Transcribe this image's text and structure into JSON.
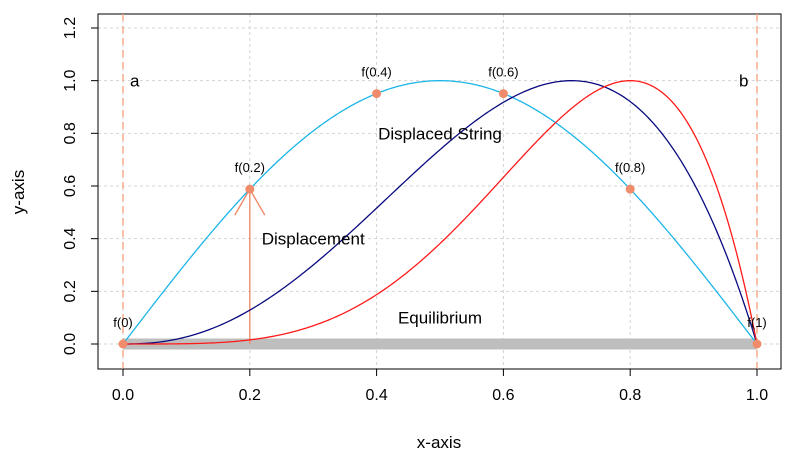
{
  "chart_data": {
    "type": "line",
    "title": "",
    "xlabel": "x-axis",
    "ylabel": "y-axis",
    "xlim": [
      0,
      1
    ],
    "ylim": [
      0,
      1.2
    ],
    "x_ticks": [
      "0.0",
      "0.2",
      "0.4",
      "0.6",
      "0.8",
      "1.0"
    ],
    "y_ticks": [
      "0.0",
      "0.2",
      "0.4",
      "0.6",
      "0.8",
      "1.0",
      "1.2"
    ],
    "grid": true,
    "series": [
      {
        "color": "#1ab4e8",
        "formula": "sin(pi*x)"
      },
      {
        "color": "#0a0a80",
        "formula": "x^(2.42)*(1-x) scaled to peak 1"
      },
      {
        "color": "#ff1a1a",
        "formula": "x^4*(1-x) scaled to peak 1"
      }
    ],
    "equilibrium": {
      "x": [
        0,
        1
      ],
      "y": 0,
      "color": "#bebebe"
    },
    "boundaries": [
      {
        "x": 0,
        "label": "a"
      },
      {
        "x": 1,
        "label": "b"
      }
    ],
    "boundary_color": "#f4a582",
    "points": [
      {
        "x": 0.0,
        "y": 0.0,
        "label": "f(0)"
      },
      {
        "x": 0.2,
        "y": 0.588,
        "label": "f(0.2)"
      },
      {
        "x": 0.4,
        "y": 0.951,
        "label": "f(0.4)"
      },
      {
        "x": 0.6,
        "y": 0.951,
        "label": "f(0.6)"
      },
      {
        "x": 0.8,
        "y": 0.588,
        "label": "f(0.8)"
      },
      {
        "x": 1.0,
        "y": 0.0,
        "label": "f(1)"
      }
    ],
    "point_color": "#f08c6c",
    "displacement_arrow": {
      "x": 0.2,
      "from_y": 0.0,
      "to_y": 0.588,
      "color": "#f08c6c"
    },
    "annotations": [
      {
        "text": "Displaced String",
        "x": 0.5,
        "y": 0.8
      },
      {
        "text": "Displacement",
        "x": 0.3,
        "y": 0.4
      },
      {
        "text": "Equilibrium",
        "x": 0.5,
        "y": 0.1
      }
    ]
  }
}
